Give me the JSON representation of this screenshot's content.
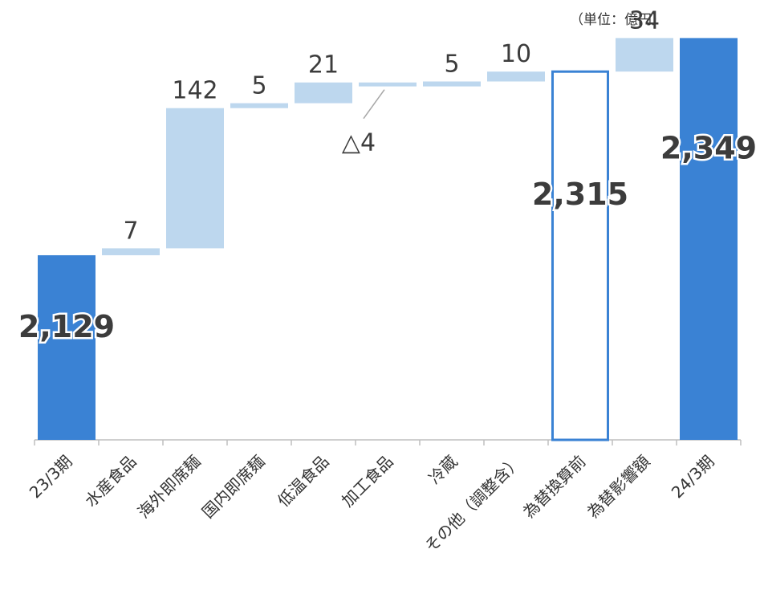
{
  "unit_label": "（単位：億円）",
  "colors": {
    "total": "#3A82D4",
    "delta": "#BDD7EE",
    "subtotal_outline": "#3A82D4",
    "axis": "#BFBFBF",
    "text": "#333333",
    "value_text": "#3C3C3C"
  },
  "chart_data": {
    "type": "bar",
    "subtype": "waterfall",
    "title": "",
    "xlabel": "",
    "ylabel": "",
    "unit": "億円",
    "categories": [
      "23/3期",
      "水産食品",
      "海外即席麺",
      "国内即席麺",
      "低温食品",
      "加工食品",
      "冷蔵",
      "その他（調整含）",
      "為替換算前",
      "為替影響額",
      "24/3期"
    ],
    "values": [
      2129,
      7,
      142,
      5,
      21,
      -4,
      5,
      10,
      2315,
      34,
      2349
    ],
    "kinds": [
      "total",
      "delta",
      "delta",
      "delta",
      "delta",
      "delta",
      "delta",
      "delta",
      "subtotal",
      "delta",
      "total"
    ],
    "data_labels": [
      "2,129",
      "7",
      "142",
      "5",
      "21",
      "△4",
      "5",
      "10",
      "2,315",
      "34",
      "2,349"
    ],
    "ylim": [
      1942,
      2355
    ],
    "grid": false,
    "legend": "none"
  }
}
